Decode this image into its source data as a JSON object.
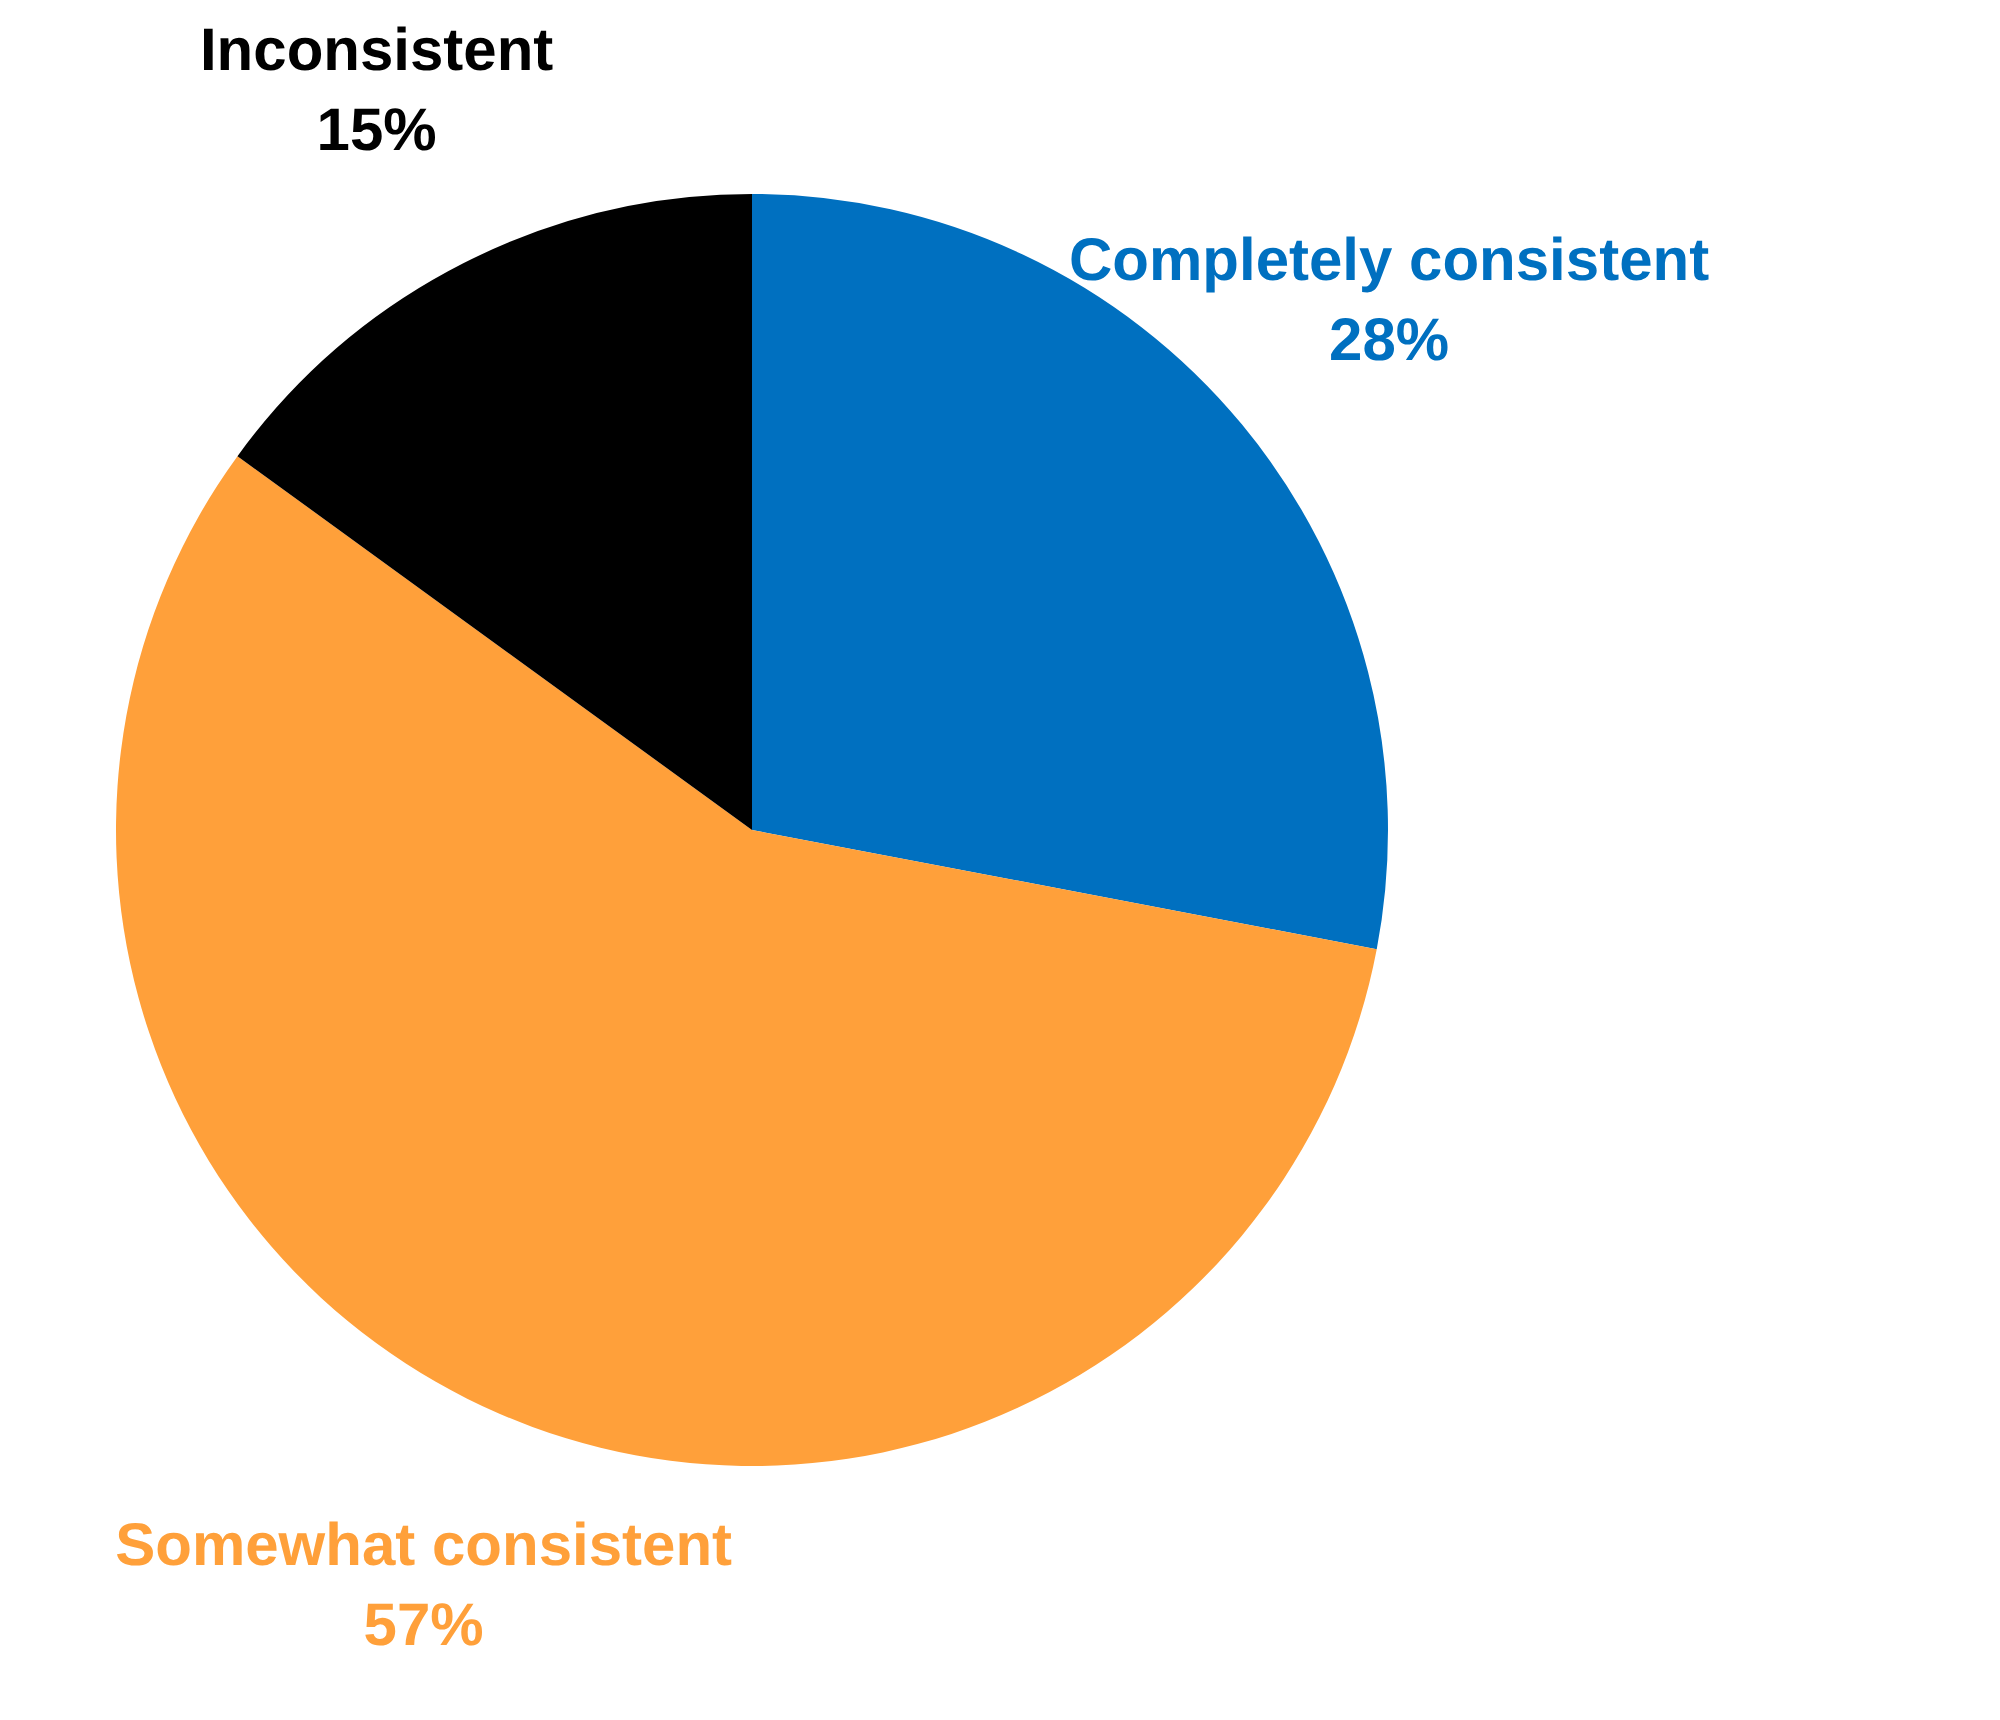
{
  "chart_data": {
    "type": "pie",
    "categories": [
      "Completely consistent",
      "Somewhat consistent",
      "Inconsistent"
    ],
    "values": [
      28,
      57,
      15
    ],
    "colors": [
      "#0070c0",
      "#ffa03a",
      "#000000"
    ],
    "value_labels": [
      "28%",
      "57%",
      "15%"
    ],
    "legend": false
  }
}
